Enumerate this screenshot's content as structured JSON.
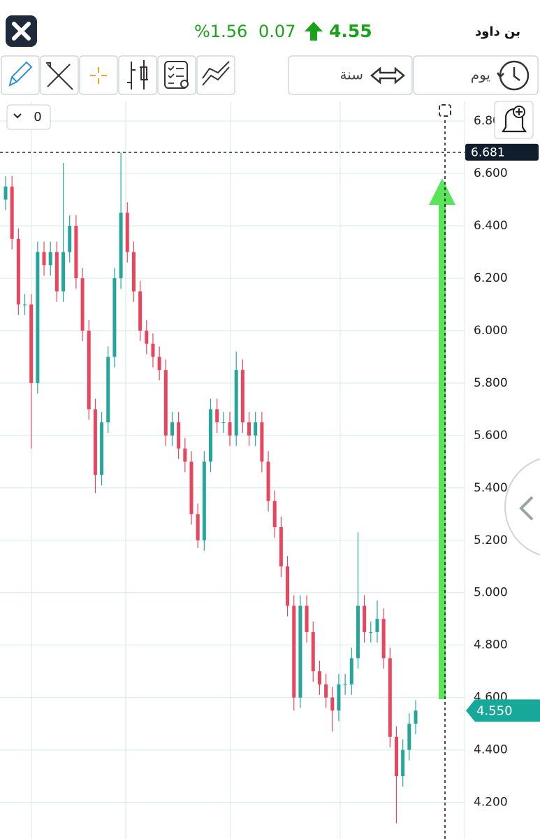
{
  "header": {
    "name": "بن داود",
    "change_percent": "%1.56",
    "change": "0.07",
    "price": "4.55"
  },
  "toolbar": {
    "range_button": "سنة",
    "interval_button": "يوم"
  },
  "indicator_dropdown": "0",
  "chart_data": {
    "type": "candlestick",
    "ylim": [
      4.06,
      6.875
    ],
    "yticks": [
      {
        "value": 4.2,
        "label": "4.200"
      },
      {
        "value": 4.4,
        "label": "4.400"
      },
      {
        "value": 4.6,
        "label": "4.600"
      },
      {
        "value": 4.8,
        "label": "4.800"
      },
      {
        "value": 5.0,
        "label": "5.000"
      },
      {
        "value": 5.2,
        "label": "5.200"
      },
      {
        "value": 5.4,
        "label": "5.400"
      },
      {
        "value": 5.6,
        "label": "5.600"
      },
      {
        "value": 5.8,
        "label": "5.800"
      },
      {
        "value": 6.0,
        "label": "6.000"
      },
      {
        "value": 6.2,
        "label": "6.200"
      },
      {
        "value": 6.4,
        "label": "6.400"
      },
      {
        "value": 6.6,
        "label": "6.600"
      },
      {
        "value": 6.8,
        "label": "6.800"
      }
    ],
    "open": [
      6.5,
      6.55,
      6.35,
      6.1,
      6.1,
      5.8,
      6.3,
      6.25,
      6.3,
      6.15,
      6.3,
      6.4,
      6.2,
      6.0,
      5.7,
      5.45,
      5.65,
      5.9,
      6.2,
      6.45,
      6.3,
      6.15,
      6.0,
      5.95,
      5.9,
      5.85,
      5.6,
      5.65,
      5.55,
      5.5,
      5.3,
      5.2,
      5.5,
      5.7,
      5.65,
      5.65,
      5.6,
      5.85,
      5.65,
      5.6,
      5.65,
      5.5,
      5.35,
      5.25,
      5.1,
      4.95,
      4.6,
      4.95,
      4.85,
      4.7,
      4.65,
      4.6,
      4.55,
      4.65,
      4.65,
      4.75,
      4.95,
      4.85,
      4.85,
      4.9,
      4.75,
      4.45,
      4.3,
      4.4,
      4.5
    ],
    "high": [
      6.59,
      6.59,
      6.39,
      6.14,
      6.14,
      6.34,
      6.34,
      6.34,
      6.34,
      6.64,
      6.44,
      6.44,
      6.24,
      6.04,
      5.74,
      5.69,
      5.94,
      6.24,
      6.68,
      6.49,
      6.34,
      6.19,
      6.04,
      5.99,
      5.94,
      5.89,
      5.69,
      5.69,
      5.59,
      5.54,
      5.34,
      5.54,
      5.74,
      5.74,
      5.69,
      5.69,
      5.92,
      5.89,
      5.69,
      5.69,
      5.69,
      5.54,
      5.39,
      5.29,
      5.14,
      4.99,
      4.99,
      4.99,
      4.89,
      4.74,
      4.69,
      4.64,
      4.69,
      4.69,
      4.79,
      5.23,
      4.99,
      4.89,
      4.97,
      4.94,
      4.79,
      4.49,
      4.44,
      4.54,
      4.59
    ],
    "low": [
      6.46,
      6.31,
      6.06,
      6.06,
      5.55,
      5.76,
      6.21,
      6.21,
      6.11,
      6.11,
      6.26,
      6.16,
      5.96,
      5.66,
      5.38,
      5.41,
      5.61,
      5.86,
      6.16,
      6.26,
      6.11,
      5.96,
      5.91,
      5.86,
      5.81,
      5.56,
      5.56,
      5.51,
      5.46,
      5.26,
      5.17,
      5.16,
      5.46,
      5.61,
      5.61,
      5.56,
      5.56,
      5.61,
      5.56,
      5.56,
      5.46,
      5.31,
      5.21,
      5.06,
      4.91,
      4.55,
      4.56,
      4.81,
      4.66,
      4.61,
      4.56,
      4.47,
      4.51,
      4.61,
      4.61,
      4.71,
      4.81,
      4.81,
      4.81,
      4.71,
      4.41,
      4.12,
      4.26,
      4.36,
      4.46
    ],
    "close": [
      6.55,
      6.35,
      6.1,
      6.1,
      5.8,
      6.3,
      6.25,
      6.3,
      6.15,
      6.3,
      6.4,
      6.2,
      6.0,
      5.7,
      5.45,
      5.65,
      5.9,
      6.2,
      6.45,
      6.3,
      6.15,
      6.0,
      5.95,
      5.9,
      5.85,
      5.6,
      5.65,
      5.55,
      5.5,
      5.3,
      5.2,
      5.5,
      5.7,
      5.65,
      5.65,
      5.6,
      5.85,
      5.65,
      5.6,
      5.65,
      5.5,
      5.35,
      5.25,
      5.1,
      4.95,
      4.6,
      4.95,
      4.85,
      4.7,
      4.65,
      4.6,
      4.55,
      4.65,
      4.65,
      4.75,
      4.95,
      4.85,
      4.85,
      4.9,
      4.75,
      4.45,
      4.3,
      4.4,
      4.5,
      4.55
    ],
    "up_color": "#26a69a",
    "down_color": "#e8455e",
    "grid": true,
    "crosshair_price": 6.681,
    "last_price": {
      "value": 4.55,
      "label": "4.550"
    }
  }
}
